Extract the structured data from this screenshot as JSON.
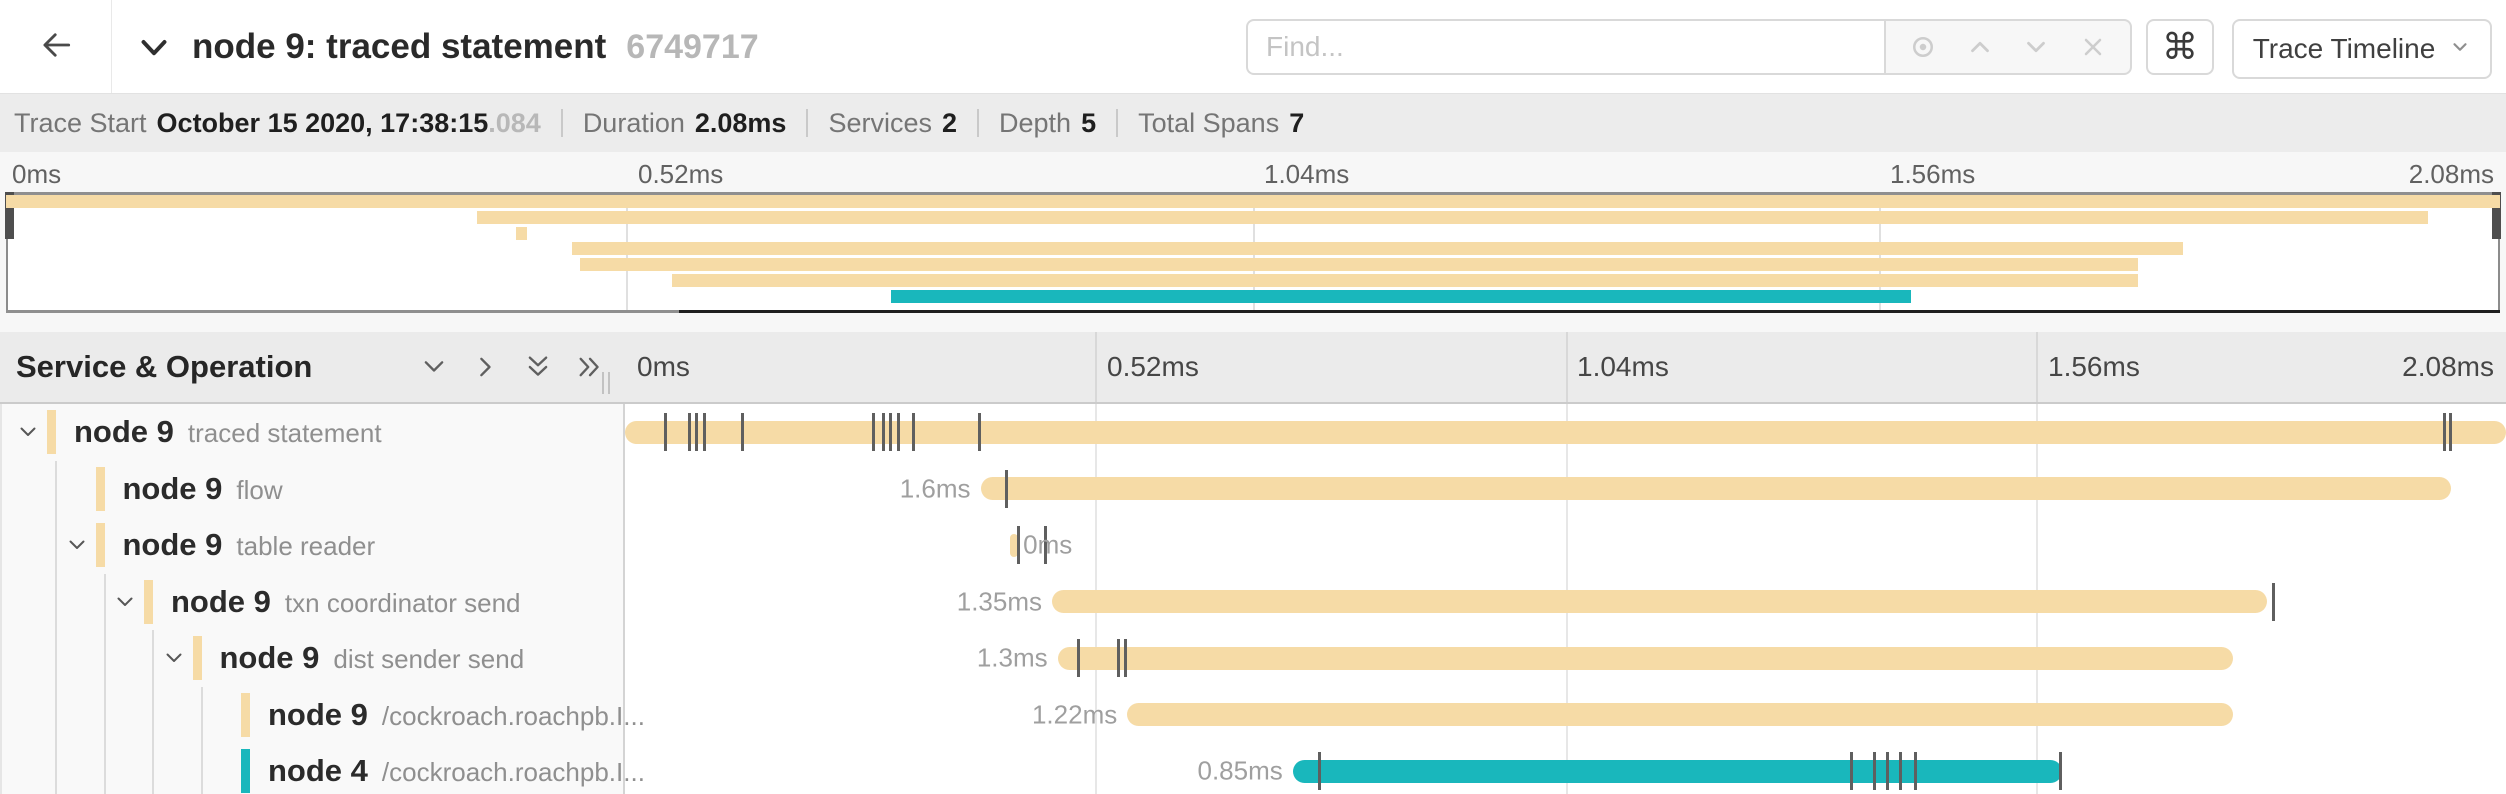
{
  "header": {
    "title": "node 9: traced statement",
    "trace_id": "6749717",
    "find_placeholder": "Find...",
    "shortcut_label": "⌘",
    "view_dropdown_label": "Trace Timeline"
  },
  "summary": {
    "items": [
      {
        "label": "Trace Start",
        "value": "October 15 2020, 17:38:15",
        "suffix": ".084"
      },
      {
        "label": "Duration",
        "value": "2.08ms",
        "suffix": ""
      },
      {
        "label": "Services",
        "value": "2",
        "suffix": ""
      },
      {
        "label": "Depth",
        "value": "5",
        "suffix": ""
      },
      {
        "label": "Total Spans",
        "value": "7",
        "suffix": ""
      }
    ]
  },
  "minimap": {
    "ticks": [
      "0ms",
      "0.52ms",
      "1.04ms",
      "1.56ms",
      "2.08ms"
    ]
  },
  "timeline": {
    "left_header": "Service & Operation",
    "ticks": [
      "0ms",
      "0.52ms",
      "1.04ms",
      "1.56ms",
      "2.08ms"
    ]
  },
  "colors": {
    "tan": "#f6dba6",
    "teal": "#19b7bc",
    "marker": "#5f5f5f"
  },
  "spans": [
    {
      "service": "node 9",
      "operation": "traced statement",
      "depth": 0,
      "chevron": true,
      "color": "tan",
      "start": 0.0,
      "end": 1.0,
      "duration": "",
      "label_side": "none",
      "markers": [
        0.021,
        0.034,
        0.038,
        0.042,
        0.062,
        0.132,
        0.137,
        0.141,
        0.145,
        0.153,
        0.188,
        0.967,
        0.97
      ]
    },
    {
      "service": "node 9",
      "operation": "flow",
      "depth": 1,
      "chevron": false,
      "color": "tan",
      "start": 0.189,
      "end": 0.971,
      "duration": "1.6ms",
      "label_side": "left",
      "markers": [
        0.2025
      ]
    },
    {
      "service": "node 9",
      "operation": "table reader",
      "depth": 1,
      "chevron": true,
      "color": "tan",
      "start": 0.2045,
      "end": 0.209,
      "duration": "0ms",
      "label_side": "right",
      "markers": [
        0.209,
        0.2235
      ]
    },
    {
      "service": "node 9",
      "operation": "txn coordinator send",
      "depth": 2,
      "chevron": true,
      "color": "tan",
      "start": 0.227,
      "end": 0.873,
      "duration": "1.35ms",
      "label_side": "left",
      "markers": [
        0.876
      ]
    },
    {
      "service": "node 9",
      "operation": "dist sender send",
      "depth": 3,
      "chevron": true,
      "color": "tan",
      "start": 0.23,
      "end": 0.855,
      "duration": "1.3ms",
      "label_side": "left",
      "markers": [
        0.241,
        0.262,
        0.266
      ]
    },
    {
      "service": "node 9",
      "operation": "/cockroach.roachpb.I...",
      "depth": 4,
      "chevron": false,
      "color": "tan",
      "start": 0.267,
      "end": 0.855,
      "duration": "1.22ms",
      "label_side": "left",
      "markers": []
    },
    {
      "service": "node 4",
      "operation": "/cockroach.roachpb.I...",
      "depth": 4,
      "chevron": false,
      "color": "teal",
      "start": 0.355,
      "end": 0.764,
      "duration": "0.85ms",
      "label_side": "left",
      "markers": [
        0.369,
        0.652,
        0.664,
        0.671,
        0.678,
        0.686,
        0.763
      ]
    }
  ]
}
